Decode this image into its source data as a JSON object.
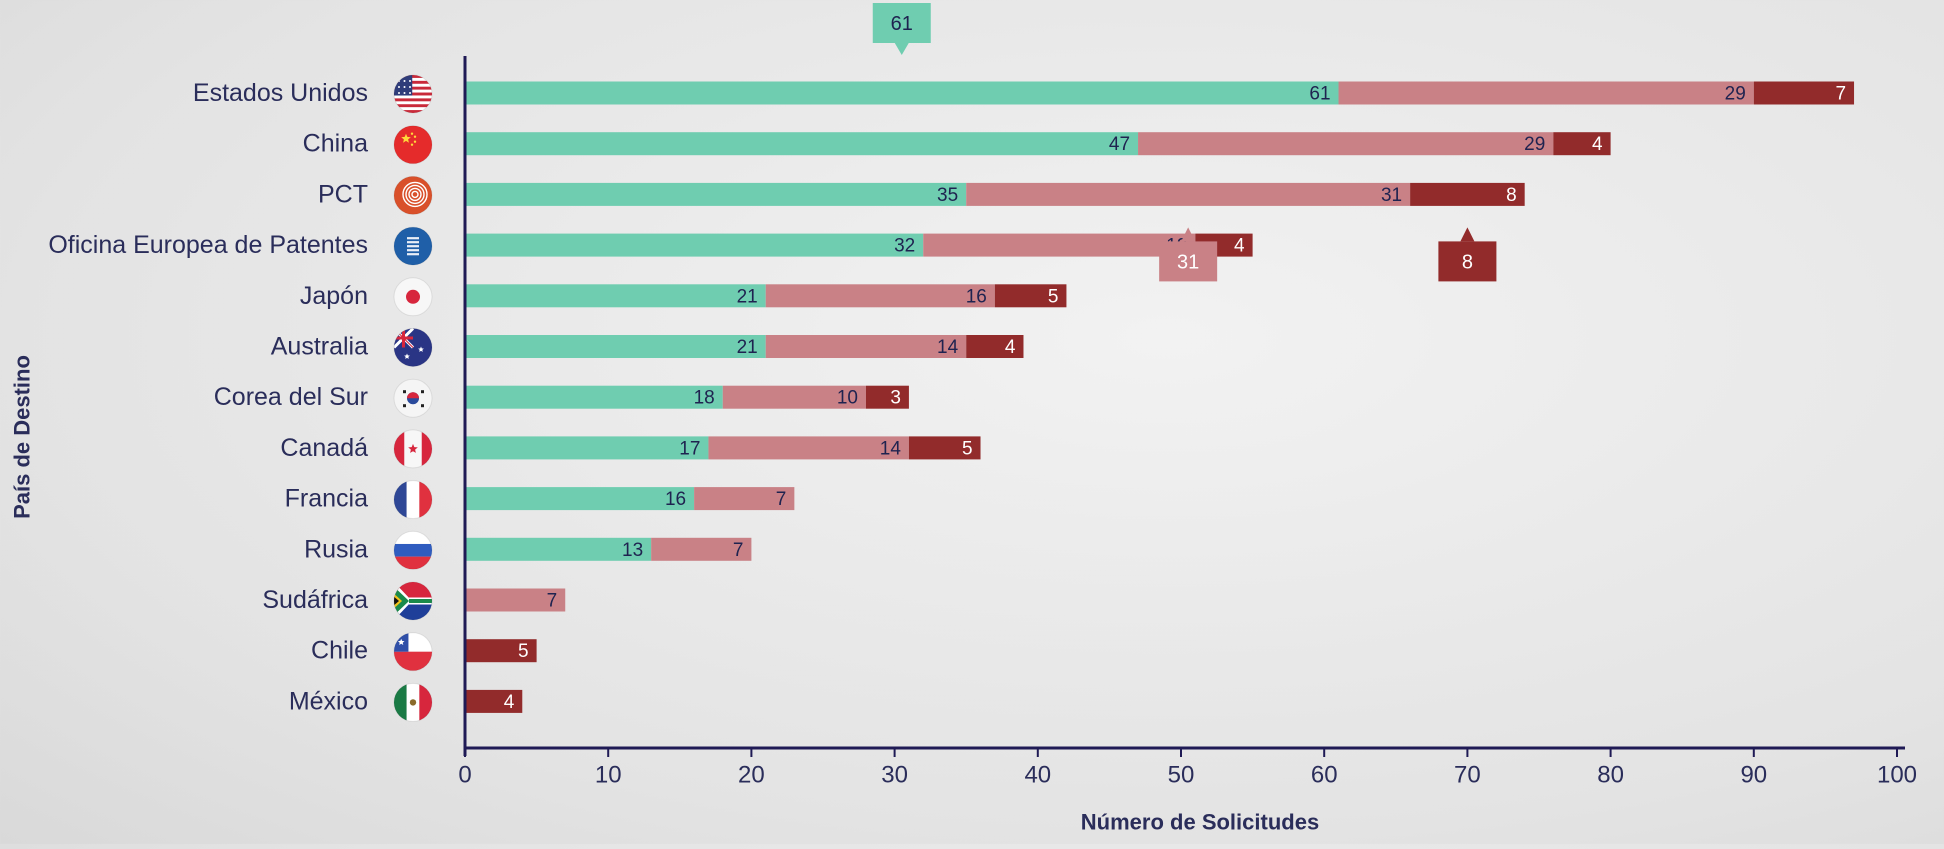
{
  "chart_data": {
    "type": "bar",
    "orientation": "horizontal",
    "stacked": true,
    "xlabel": "Número de Solicitudes",
    "ylabel": "País de Destino",
    "xlim": [
      0,
      100
    ],
    "xticks": [
      0,
      10,
      20,
      30,
      40,
      50,
      60,
      70,
      80,
      90,
      100
    ],
    "grid": false,
    "categories": [
      "Estados Unidos",
      "China",
      "PCT",
      "Oficina Europea de Patentes",
      "Japón",
      "Australia",
      "Corea del Sur",
      "Canadá",
      "Francia",
      "Rusia",
      "Sudáfrica",
      "Chile",
      "México"
    ],
    "flag_icons": [
      "usa-flag-icon",
      "china-flag-icon",
      "pct-logo-icon",
      "epo-logo-icon",
      "japan-flag-icon",
      "australia-flag-icon",
      "south-korea-flag-icon",
      "canada-flag-icon",
      "france-flag-icon",
      "russia-flag-icon",
      "south-africa-flag-icon",
      "chile-flag-icon",
      "mexico-flag-icon"
    ],
    "series": [
      {
        "color": "#6fcdb0",
        "label_color": "#1f2350",
        "values": [
          61,
          47,
          35,
          32,
          21,
          21,
          18,
          17,
          16,
          13,
          0,
          0,
          0
        ]
      },
      {
        "color": "#c98186",
        "label_color": "#1f2350",
        "values": [
          29,
          29,
          31,
          19,
          16,
          14,
          10,
          14,
          7,
          7,
          7,
          0,
          0
        ]
      },
      {
        "color": "#922b2b",
        "label_color": "#ffffff",
        "values": [
          7,
          4,
          8,
          4,
          5,
          4,
          3,
          5,
          0,
          0,
          0,
          5,
          4
        ]
      }
    ],
    "callouts": [
      {
        "text": "61",
        "value": 61,
        "series": 0,
        "category": 0,
        "color": "#6fcdb0",
        "text_color": "#1f2350",
        "position": "above"
      },
      {
        "text": "31",
        "value": 31,
        "series": 1,
        "category": 2,
        "color": "#c98186",
        "text_color": "#ffffff",
        "position": "below"
      },
      {
        "text": "8",
        "value": 8,
        "series": 2,
        "category": 2,
        "color": "#922b2b",
        "text_color": "#ffffff",
        "position": "below"
      }
    ],
    "colors": {
      "axis": "#1f1a55",
      "text": "#2a2d5a"
    }
  }
}
